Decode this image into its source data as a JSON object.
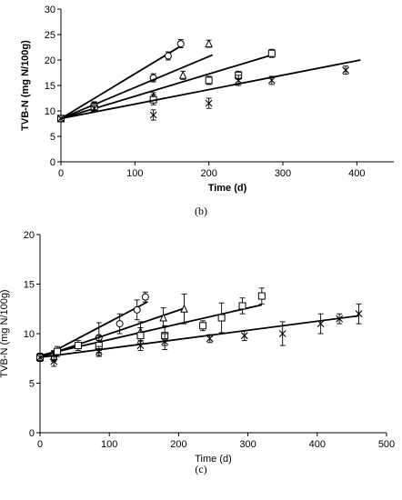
{
  "chart_data": [
    {
      "type": "scatter",
      "panel_label": "(b)",
      "title": "",
      "xlabel": "Time (d)",
      "ylabel": "TVB-N (mg N/100g)",
      "xlim": [
        0,
        450
      ],
      "ylim": [
        0,
        30
      ],
      "xticks": [
        "0",
        "100",
        "200",
        "300",
        "400"
      ],
      "yticks": [
        "0",
        "5",
        "10",
        "15",
        "20",
        "25",
        "30"
      ],
      "grid": false,
      "legend": "none",
      "series": [
        {
          "marker": "circle",
          "points": [
            [
              0,
              8.5
            ],
            [
              45,
              11.0
            ],
            [
              125,
              16.5
            ],
            [
              145,
              20.8
            ],
            [
              162,
              23.2
            ]
          ],
          "errors": [
            0.6,
            0.8,
            0.8,
            0.8,
            0.8
          ],
          "fit": [
            [
              0,
              8.5
            ],
            [
              165,
              23.0
            ]
          ]
        },
        {
          "marker": "triangle",
          "points": [
            [
              0,
              8.5
            ],
            [
              45,
              11.0
            ],
            [
              125,
              12.8
            ],
            [
              165,
              17.0
            ],
            [
              200,
              23.2
            ]
          ],
          "errors": [
            0.6,
            0.7,
            0.8,
            0.8,
            0.7
          ],
          "fit": [
            [
              0,
              8.5
            ],
            [
              205,
              21.0
            ]
          ]
        },
        {
          "marker": "square",
          "points": [
            [
              0,
              8.5
            ],
            [
              45,
              10.8
            ],
            [
              125,
              12.2
            ],
            [
              200,
              16.0
            ],
            [
              240,
              17.0
            ],
            [
              285,
              21.3
            ]
          ],
          "errors": [
            0.6,
            0.8,
            1.0,
            0.8,
            0.8,
            0.8
          ],
          "fit": [
            [
              0,
              8.5
            ],
            [
              290,
              21.2
            ]
          ]
        },
        {
          "marker": "x",
          "points": [
            [
              0,
              8.5
            ],
            [
              45,
              10.5
            ],
            [
              125,
              9.2
            ],
            [
              200,
              11.5
            ],
            [
              240,
              16.0
            ],
            [
              285,
              16.0
            ],
            [
              385,
              18.0
            ]
          ],
          "errors": [
            0.6,
            0.6,
            1.0,
            1.0,
            1.0,
            0.8,
            0.8
          ],
          "fit": [
            [
              0,
              8.5
            ],
            [
              405,
              20.0
            ]
          ]
        }
      ]
    },
    {
      "type": "scatter",
      "panel_label": "(c)",
      "title": "",
      "xlabel": "Time (d)",
      "ylabel": "TVB-N (mg N/100g)",
      "xlim": [
        0,
        500
      ],
      "ylim": [
        0,
        20
      ],
      "xticks": [
        "0",
        "100",
        "200",
        "300",
        "400",
        "500"
      ],
      "yticks": [
        "0",
        "5",
        "10",
        "15",
        "20"
      ],
      "grid": false,
      "legend": "none",
      "series": [
        {
          "marker": "circle",
          "points": [
            [
              0,
              7.6
            ],
            [
              20,
              7.8
            ],
            [
              85,
              9.6
            ],
            [
              115,
              11.0
            ],
            [
              140,
              12.4
            ],
            [
              152,
              13.7
            ]
          ],
          "errors": [
            0.4,
            0.5,
            1.5,
            1.0,
            1.0,
            0.5
          ],
          "fit": [
            [
              0,
              7.5
            ],
            [
              155,
              13.2
            ]
          ]
        },
        {
          "marker": "triangle",
          "points": [
            [
              0,
              7.6
            ],
            [
              20,
              7.7
            ],
            [
              85,
              8.8
            ],
            [
              145,
              10.2
            ],
            [
              178,
              11.6
            ],
            [
              208,
              12.5
            ]
          ],
          "errors": [
            0.4,
            0.5,
            1.0,
            1.0,
            1.0,
            1.5
          ],
          "fit": [
            [
              0,
              7.6
            ],
            [
              210,
              12.6
            ]
          ]
        },
        {
          "marker": "square",
          "points": [
            [
              0,
              7.6
            ],
            [
              25,
              8.2
            ],
            [
              55,
              8.8
            ],
            [
              85,
              8.8
            ],
            [
              145,
              9.8
            ],
            [
              180,
              9.8
            ],
            [
              235,
              10.8
            ],
            [
              262,
              11.6
            ],
            [
              292,
              12.8
            ],
            [
              320,
              13.8
            ]
          ],
          "errors": [
            0.4,
            0.5,
            0.5,
            0.5,
            0.8,
            1.0,
            0.5,
            1.5,
            0.8,
            0.8
          ],
          "fit": [
            [
              0,
              7.8
            ],
            [
              320,
              12.9
            ]
          ]
        },
        {
          "marker": "x",
          "points": [
            [
              0,
              7.6
            ],
            [
              20,
              7.2
            ],
            [
              85,
              8.2
            ],
            [
              145,
              8.8
            ],
            [
              180,
              9.2
            ],
            [
              245,
              9.5
            ],
            [
              295,
              9.8
            ],
            [
              350,
              10.0
            ],
            [
              405,
              11.0
            ],
            [
              432,
              11.5
            ],
            [
              460,
              12.0
            ]
          ],
          "errors": [
            0.4,
            0.5,
            0.5,
            0.5,
            0.8,
            0.4,
            0.5,
            1.2,
            1.0,
            0.5,
            1.0
          ],
          "fit": [
            [
              0,
              7.6
            ],
            [
              460,
              11.8
            ]
          ]
        }
      ]
    }
  ]
}
